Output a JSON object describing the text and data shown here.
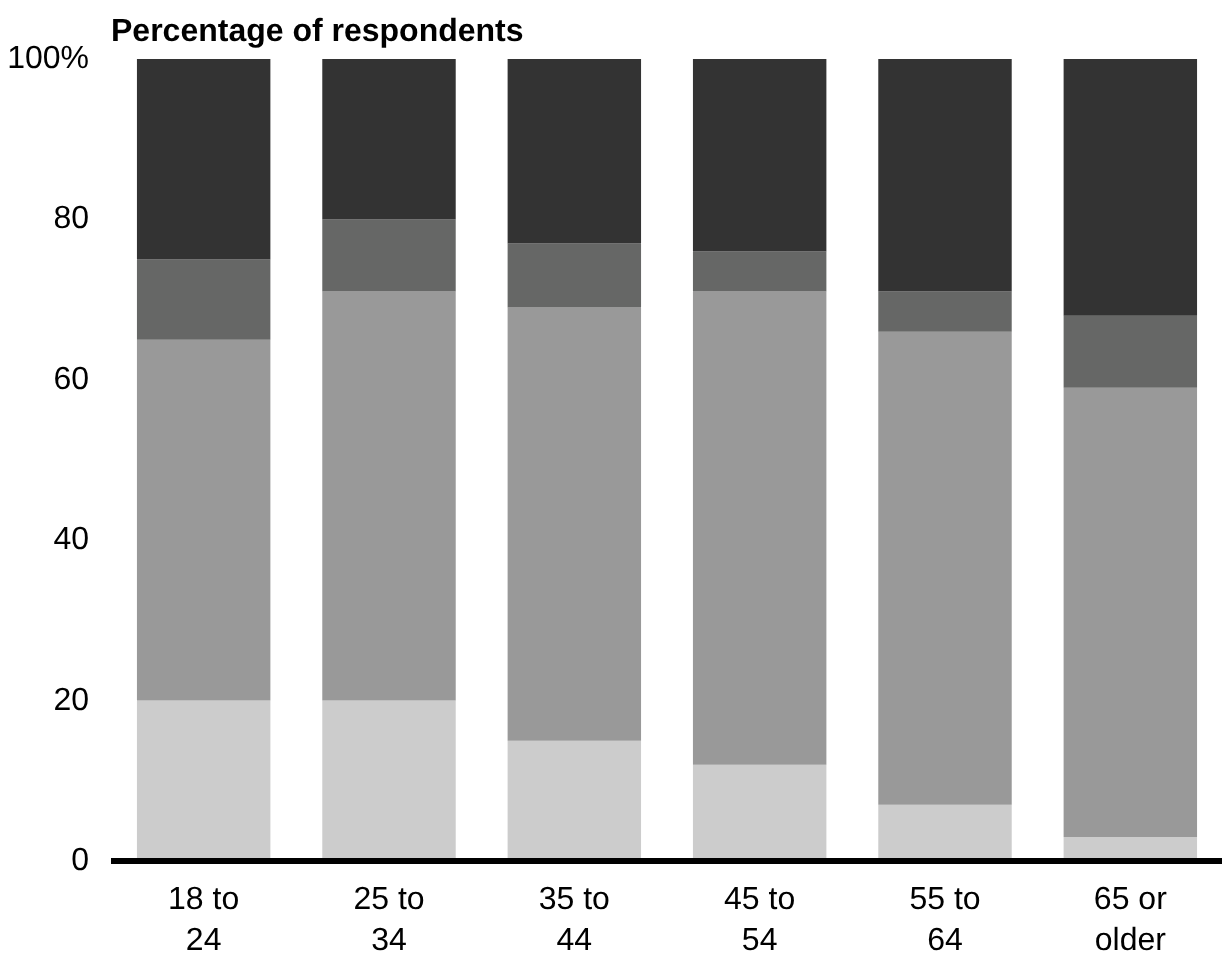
{
  "chart_data": {
    "type": "bar",
    "stacked": true,
    "title": "Percentage of respondents",
    "categories": [
      "18 to\n24",
      "25 to\n34",
      "35 to\n44",
      "45 to\n54",
      "55 to\n64",
      "65 or\nolder"
    ],
    "series": [
      {
        "color": "#cccccc",
        "values": [
          20,
          20,
          15,
          12,
          7,
          3
        ]
      },
      {
        "color": "#999999",
        "values": [
          45,
          51,
          54,
          59,
          59,
          56
        ]
      },
      {
        "color": "#666766",
        "values": [
          10,
          9,
          8,
          5,
          5,
          9
        ]
      },
      {
        "color": "#333333",
        "values": [
          25,
          20,
          23,
          24,
          29,
          32
        ]
      }
    ],
    "ylim": [
      0,
      100
    ],
    "yticks": [
      0,
      20,
      40,
      60,
      80,
      {
        "value": 100,
        "label": "100%"
      }
    ],
    "grid": false
  }
}
